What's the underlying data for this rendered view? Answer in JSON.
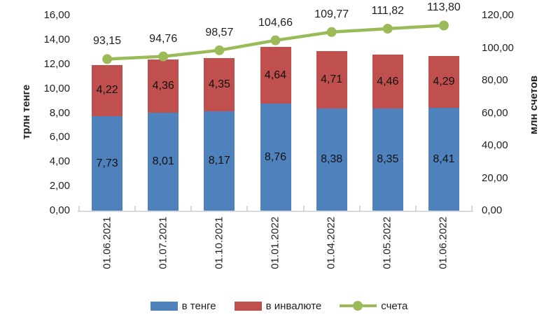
{
  "chart_data": {
    "type": "combo-stacked-bar-line",
    "categories": [
      "01.06.2021",
      "01.07.2021",
      "01.10.2021",
      "01.01.2022",
      "01.04.2022",
      "01.05.2022",
      "01.06.2022"
    ],
    "series": [
      {
        "name": "в тенге",
        "type": "bar",
        "stack": "total",
        "axis": "left",
        "color": "#4F81BD",
        "values": [
          7.73,
          8.01,
          8.17,
          8.76,
          8.38,
          8.35,
          8.41
        ],
        "labels": [
          "7,73",
          "8,01",
          "8,17",
          "8,76",
          "8,38",
          "8,35",
          "8,41"
        ]
      },
      {
        "name": "в инвалюте",
        "type": "bar",
        "stack": "total",
        "axis": "left",
        "color": "#C0504D",
        "values": [
          4.22,
          4.36,
          4.35,
          4.64,
          4.71,
          4.46,
          4.29
        ],
        "labels": [
          "4,22",
          "4,36",
          "4,35",
          "4,64",
          "4,71",
          "4,46",
          "4,29"
        ]
      },
      {
        "name": "счета",
        "type": "line",
        "axis": "right",
        "color": "#9BBB59",
        "values": [
          93.15,
          94.76,
          98.57,
          104.66,
          109.77,
          111.82,
          113.8
        ],
        "labels": [
          "93,15",
          "94,76",
          "98,57",
          "104,66",
          "109,77",
          "111,82",
          "113,80"
        ]
      }
    ],
    "left_axis": {
      "title": "трлн тенге",
      "min": 0,
      "max": 16,
      "step": 2,
      "tick_labels": [
        "0,00",
        "2,00",
        "4,00",
        "6,00",
        "8,00",
        "10,00",
        "12,00",
        "14,00",
        "16,00"
      ]
    },
    "right_axis": {
      "title": "млн счетов",
      "min": 0,
      "max": 120,
      "step": 20,
      "tick_labels": [
        "0,00",
        "20,00",
        "40,00",
        "60,00",
        "80,00",
        "100,00",
        "120,00"
      ]
    },
    "legend": {
      "position": "bottom",
      "entries": [
        "в тенге",
        "в инвалюте",
        "счета"
      ]
    },
    "grid": "off",
    "axis_line_color": "#d9d9d9"
  }
}
